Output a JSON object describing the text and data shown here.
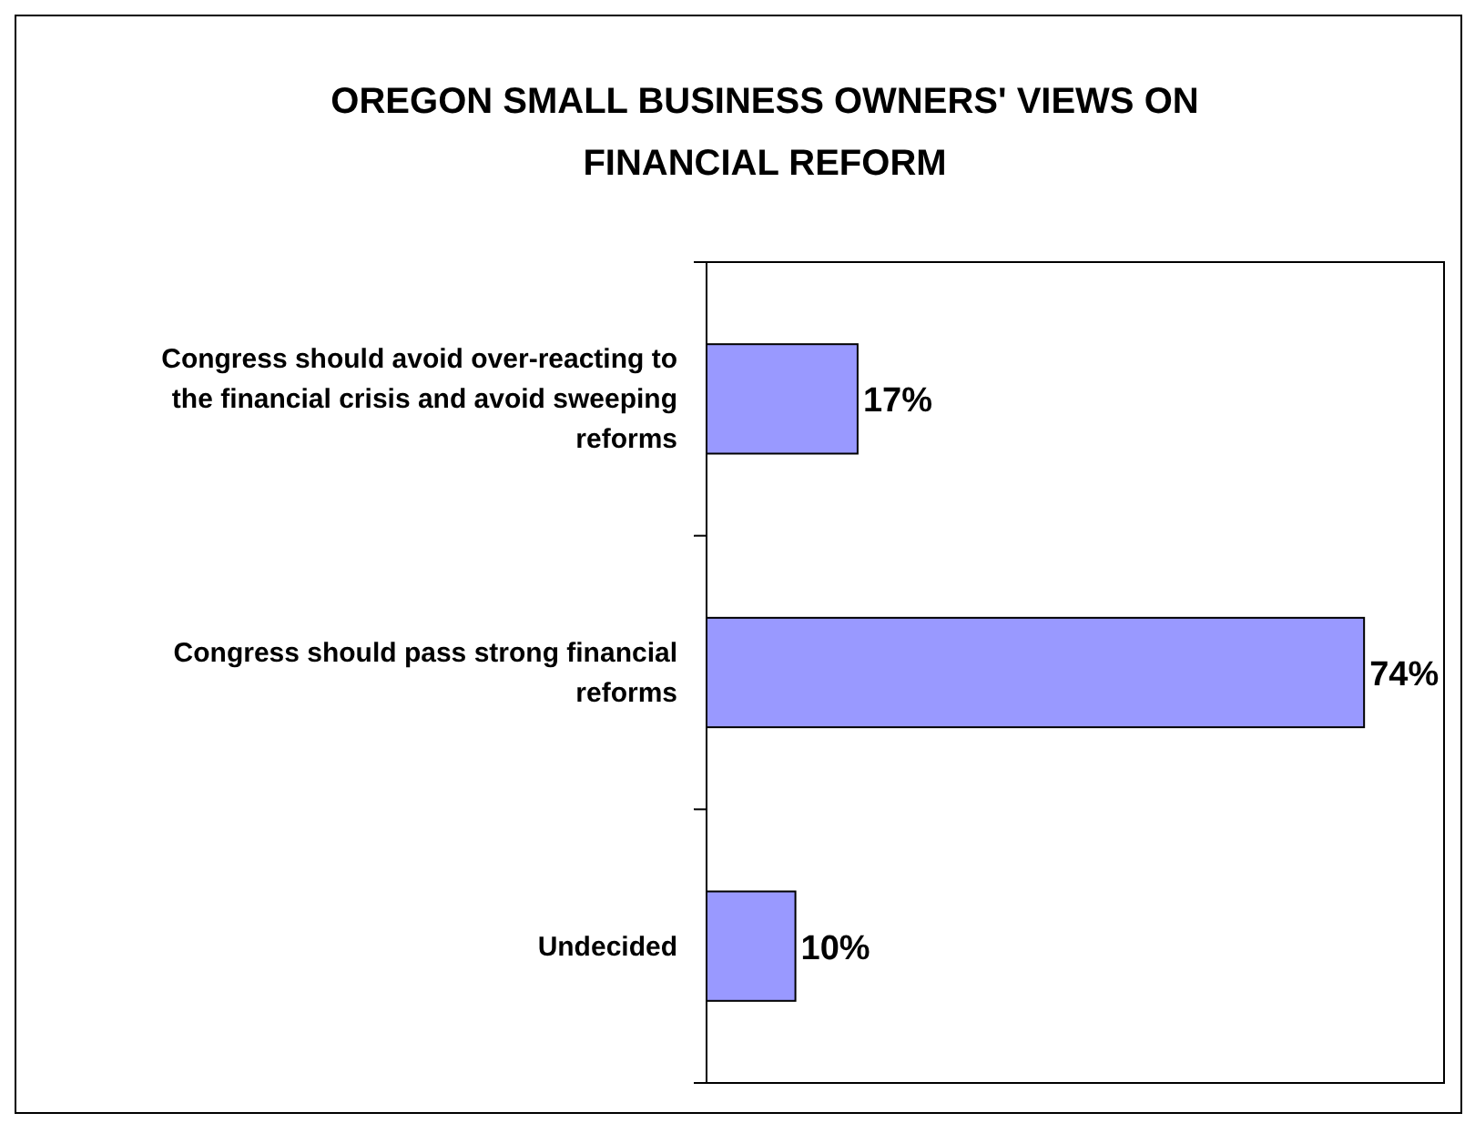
{
  "chart_data": {
    "type": "bar",
    "orientation": "horizontal",
    "title": "OREGON SMALL BUSINESS OWNERS' VIEWS ON FINANCIAL REFORM",
    "categories": [
      "Congress should avoid over-reacting to the financial crisis and avoid sweeping reforms",
      "Congress should pass strong financial reforms",
      "Undecided"
    ],
    "values": [
      17,
      74,
      10
    ],
    "value_labels": [
      "17%",
      "74%",
      "10%"
    ],
    "color": "#9999ff",
    "xlim": [
      0,
      83
    ],
    "tick_labels": "y"
  }
}
